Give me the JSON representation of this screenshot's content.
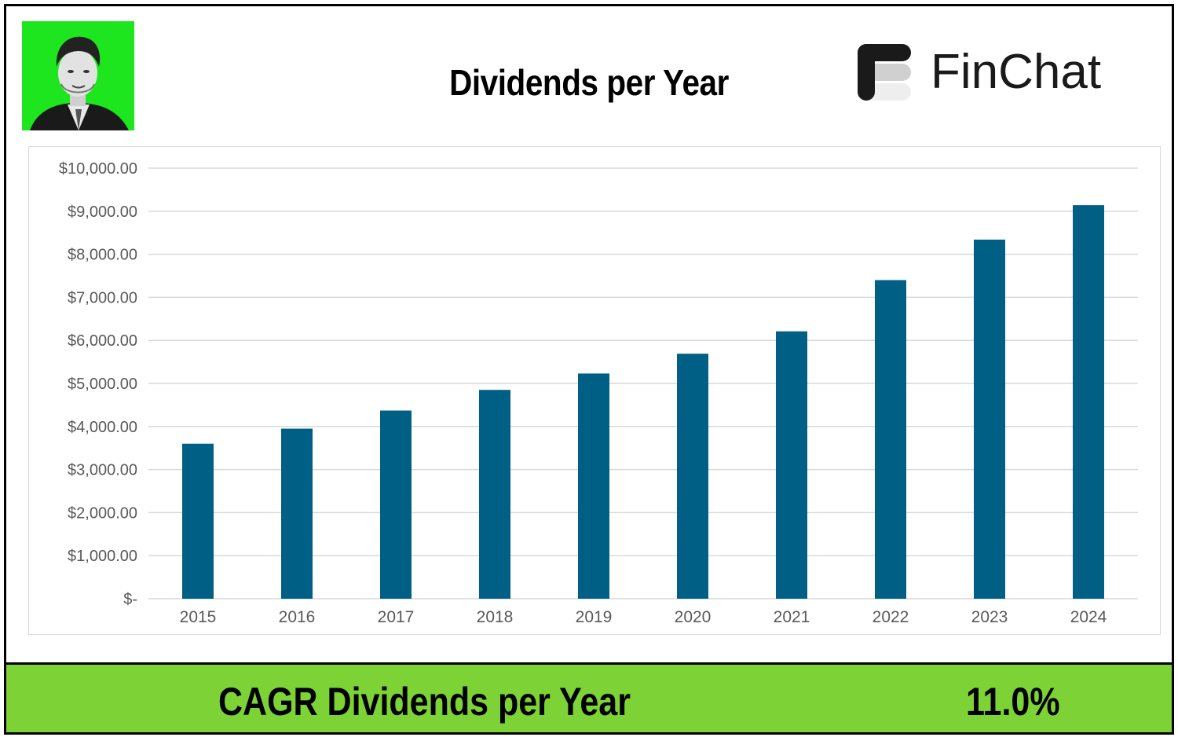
{
  "title": "Dividends per Year",
  "logo": {
    "text": "FinChat",
    "icon": "finchat-logo-icon"
  },
  "avatar": {
    "icon": "author-portrait",
    "bg_color": "#1ee61e"
  },
  "footer": {
    "label": "CAGR Dividends per Year",
    "value": "11.0%",
    "bg_color": "#7dd336"
  },
  "chart_data": {
    "type": "bar",
    "title": "Dividends per Year",
    "xlabel": "",
    "ylabel": "",
    "categories": [
      "2015",
      "2016",
      "2017",
      "2018",
      "2019",
      "2020",
      "2021",
      "2022",
      "2023",
      "2024"
    ],
    "series": [
      {
        "values": [
          3600,
          3950,
          4370,
          4850,
          5230,
          5690,
          6210,
          7400,
          8340,
          9140
        ],
        "color": "#005f85"
      }
    ],
    "ylim": [
      0,
      10000
    ],
    "yticks": [
      0,
      1000,
      2000,
      3000,
      4000,
      5000,
      6000,
      7000,
      8000,
      9000,
      10000
    ],
    "ytick_labels": [
      "$-",
      "$1,000.00",
      "$2,000.00",
      "$3,000.00",
      "$4,000.00",
      "$5,000.00",
      "$6,000.00",
      "$7,000.00",
      "$8,000.00",
      "$9,000.00",
      "$10,000.00"
    ],
    "grid": true,
    "legend": "none"
  }
}
